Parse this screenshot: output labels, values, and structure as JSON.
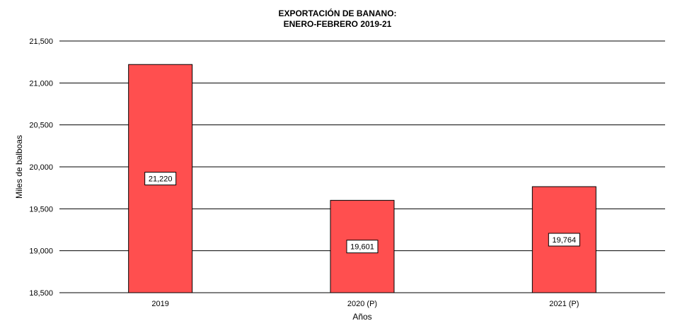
{
  "chart_data": {
    "type": "bar",
    "title": "EXPORTACIÓN  DE  BANANO:",
    "subtitle": "ENERO-FEBRERO  2019-21",
    "xlabel": "Años",
    "ylabel": "Miles de balboas",
    "categories": [
      "2019",
      "2020 (P)",
      "2021 (P)"
    ],
    "values": [
      21220,
      19601,
      19764
    ],
    "data_labels": [
      "21,220",
      "19,601",
      "19,764"
    ],
    "ylim": [
      18500,
      21500
    ],
    "yticks": [
      18500,
      19000,
      19500,
      20000,
      20500,
      21000,
      21500
    ],
    "ytick_labels": [
      "18,500",
      "19,000",
      "19,500",
      "20,000",
      "20,500",
      "21,000",
      "21,500"
    ],
    "grid": true,
    "bar_color": "#ff4f4f"
  }
}
